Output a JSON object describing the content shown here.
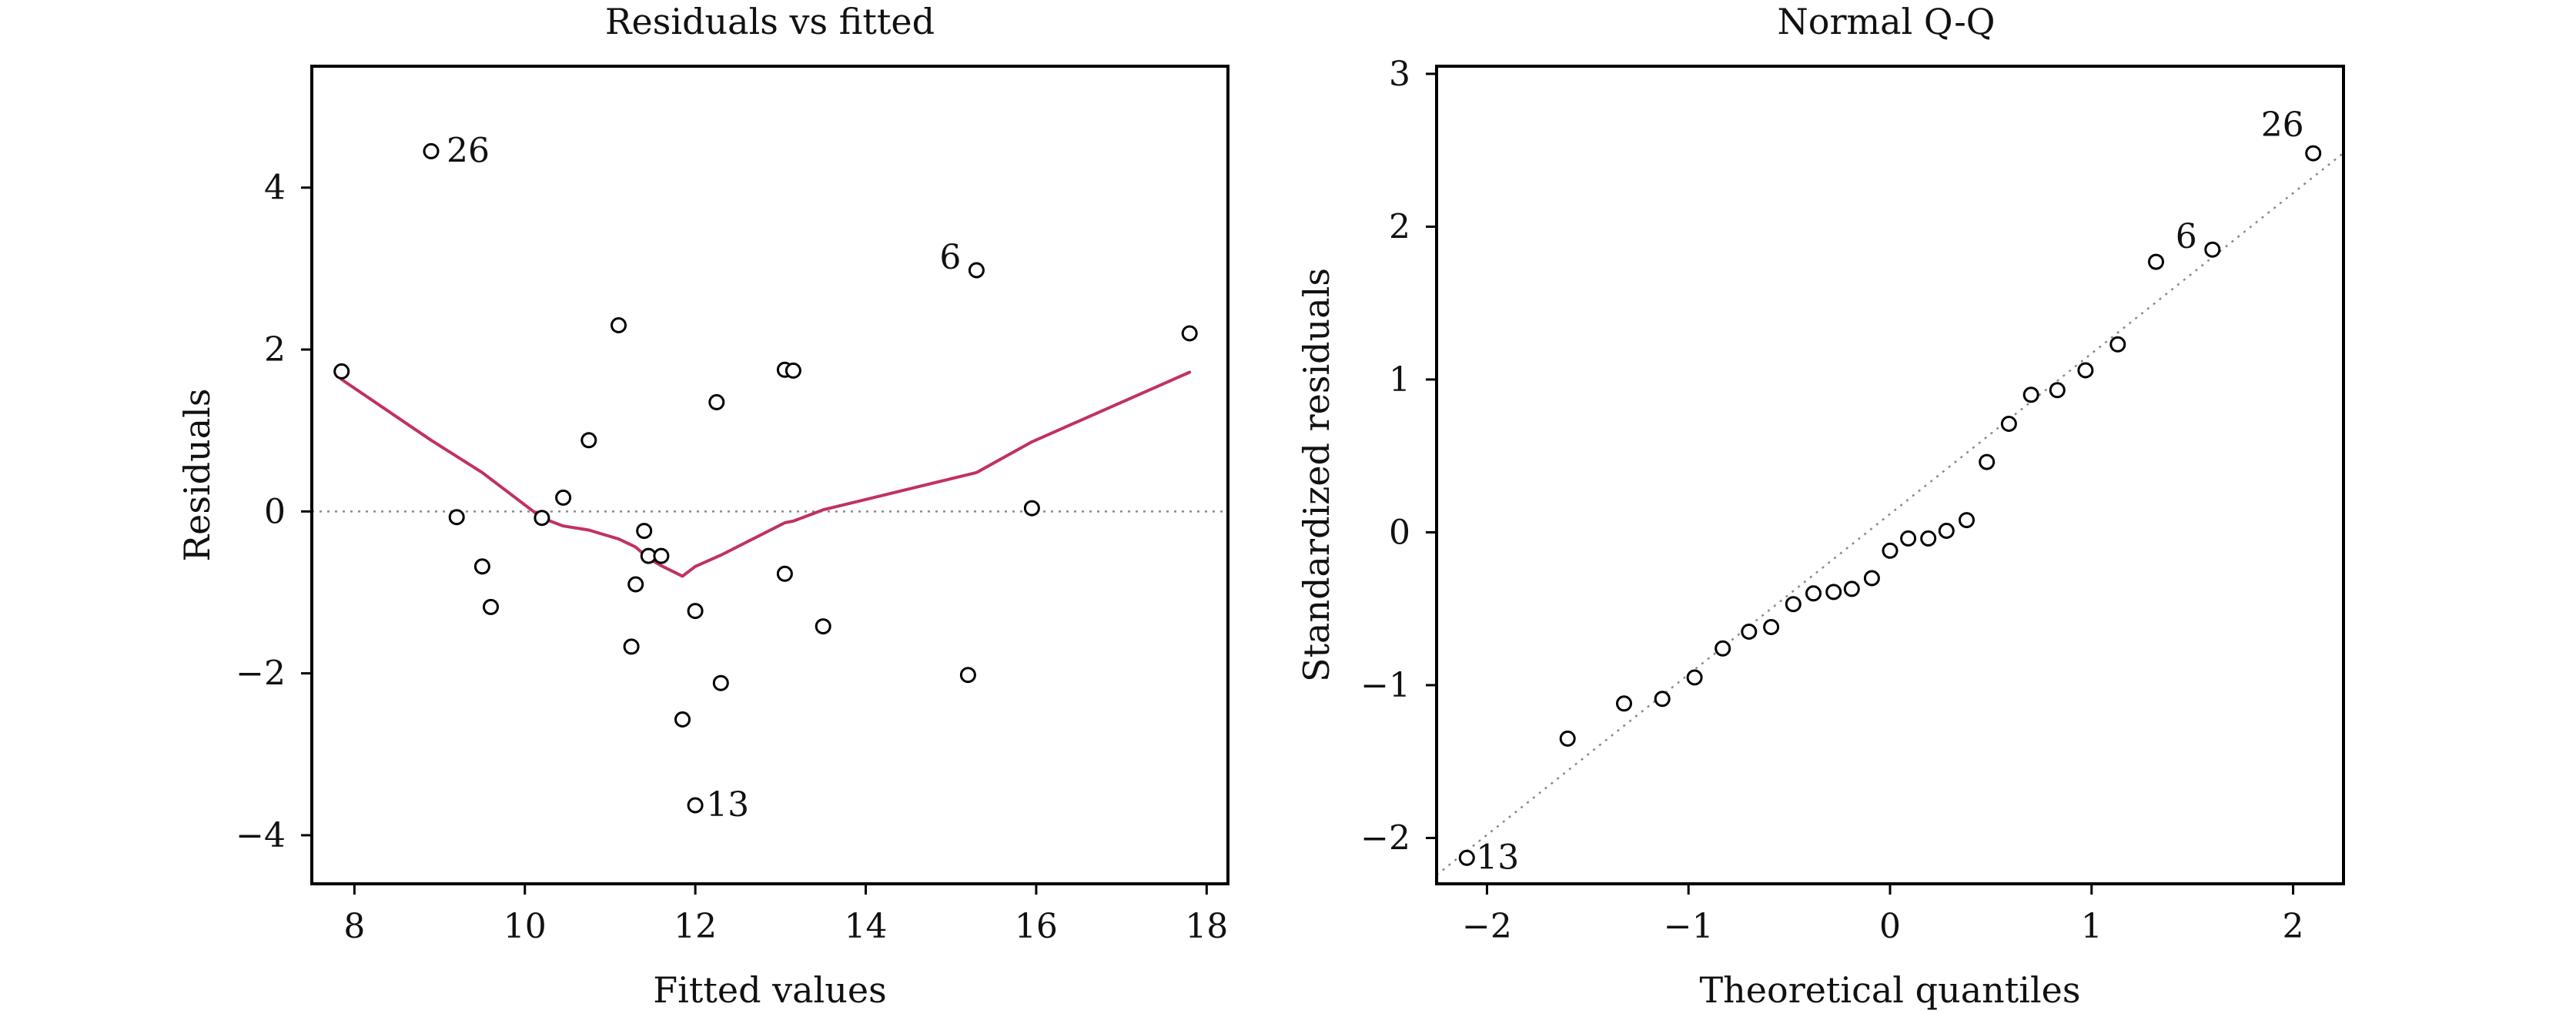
{
  "colors": {
    "smoother": "#c0325f",
    "points": "#000000",
    "reference": "#8a8a8a"
  },
  "chart_data": [
    {
      "type": "scatter",
      "title": "Residuals vs fitted",
      "xlabel": "Fitted values",
      "ylabel": "Residuals",
      "xlim": [
        7.5,
        18.25
      ],
      "ylim": [
        -4.6,
        5.5
      ],
      "xticks": [
        8,
        10,
        12,
        14,
        16,
        18
      ],
      "yticks": [
        -4,
        -2,
        0,
        2,
        4
      ],
      "grid": false,
      "reference_line": {
        "kind": "horizontal",
        "y": 0,
        "style": "dotted"
      },
      "points": [
        {
          "x": 7.85,
          "y": 1.73
        },
        {
          "x": 8.9,
          "y": 4.45,
          "label": "26"
        },
        {
          "x": 9.2,
          "y": -0.07
        },
        {
          "x": 9.5,
          "y": -0.68
        },
        {
          "x": 9.6,
          "y": -1.18
        },
        {
          "x": 10.2,
          "y": -0.08
        },
        {
          "x": 10.45,
          "y": 0.17
        },
        {
          "x": 10.75,
          "y": 0.88
        },
        {
          "x": 11.1,
          "y": 2.3
        },
        {
          "x": 11.25,
          "y": -1.67
        },
        {
          "x": 11.3,
          "y": -0.9
        },
        {
          "x": 11.4,
          "y": -0.24
        },
        {
          "x": 11.45,
          "y": -0.55
        },
        {
          "x": 11.6,
          "y": -0.55
        },
        {
          "x": 11.85,
          "y": -2.57
        },
        {
          "x": 12.0,
          "y": -1.23
        },
        {
          "x": 12.0,
          "y": -3.63,
          "label": "13"
        },
        {
          "x": 12.25,
          "y": 1.35
        },
        {
          "x": 12.3,
          "y": -2.12
        },
        {
          "x": 13.05,
          "y": 1.75
        },
        {
          "x": 13.05,
          "y": -0.77
        },
        {
          "x": 13.15,
          "y": 1.74
        },
        {
          "x": 13.5,
          "y": -1.42
        },
        {
          "x": 15.2,
          "y": -2.02
        },
        {
          "x": 15.3,
          "y": 2.98,
          "label": "6"
        },
        {
          "x": 15.95,
          "y": 0.04
        },
        {
          "x": 17.8,
          "y": 2.2
        }
      ],
      "smoother": [
        {
          "x": 7.85,
          "y": 1.63
        },
        {
          "x": 8.9,
          "y": 0.88
        },
        {
          "x": 9.5,
          "y": 0.48
        },
        {
          "x": 10.2,
          "y": -0.08
        },
        {
          "x": 10.45,
          "y": -0.18
        },
        {
          "x": 10.75,
          "y": -0.23
        },
        {
          "x": 11.1,
          "y": -0.34
        },
        {
          "x": 11.3,
          "y": -0.44
        },
        {
          "x": 11.45,
          "y": -0.58
        },
        {
          "x": 11.6,
          "y": -0.67
        },
        {
          "x": 11.85,
          "y": -0.8
        },
        {
          "x": 12.0,
          "y": -0.68
        },
        {
          "x": 12.3,
          "y": -0.54
        },
        {
          "x": 13.05,
          "y": -0.14
        },
        {
          "x": 13.15,
          "y": -0.12
        },
        {
          "x": 13.5,
          "y": 0.02
        },
        {
          "x": 15.3,
          "y": 0.48
        },
        {
          "x": 15.95,
          "y": 0.86
        },
        {
          "x": 17.8,
          "y": 1.72
        }
      ]
    },
    {
      "type": "scatter",
      "title": "Normal Q-Q",
      "xlabel": "Theoretical quantiles",
      "ylabel": "Standardized residuals",
      "xlim": [
        -2.25,
        2.25
      ],
      "ylim": [
        -2.3,
        3.05
      ],
      "xticks": [
        -2,
        -1,
        0,
        1,
        2
      ],
      "yticks": [
        -2,
        -1,
        0,
        1,
        2,
        3
      ],
      "grid": false,
      "reference_line": {
        "kind": "diagonal",
        "slope": 1.05,
        "intercept": 0.12,
        "style": "dotted"
      },
      "points": [
        {
          "x": -2.1,
          "y": -2.13,
          "label": "13"
        },
        {
          "x": -1.6,
          "y": -1.35
        },
        {
          "x": -1.32,
          "y": -1.12
        },
        {
          "x": -1.13,
          "y": -1.09
        },
        {
          "x": -0.97,
          "y": -0.95
        },
        {
          "x": -0.83,
          "y": -0.76
        },
        {
          "x": -0.7,
          "y": -0.65
        },
        {
          "x": -0.59,
          "y": -0.62
        },
        {
          "x": -0.48,
          "y": -0.47
        },
        {
          "x": -0.38,
          "y": -0.4
        },
        {
          "x": -0.28,
          "y": -0.39
        },
        {
          "x": -0.19,
          "y": -0.37
        },
        {
          "x": -0.09,
          "y": -0.3
        },
        {
          "x": 0.0,
          "y": -0.12
        },
        {
          "x": 0.09,
          "y": -0.04
        },
        {
          "x": 0.19,
          "y": -0.04
        },
        {
          "x": 0.28,
          "y": 0.01
        },
        {
          "x": 0.38,
          "y": 0.08
        },
        {
          "x": 0.48,
          "y": 0.46
        },
        {
          "x": 0.59,
          "y": 0.71
        },
        {
          "x": 0.7,
          "y": 0.9
        },
        {
          "x": 0.83,
          "y": 0.93
        },
        {
          "x": 0.97,
          "y": 1.06
        },
        {
          "x": 1.13,
          "y": 1.23
        },
        {
          "x": 1.32,
          "y": 1.77
        },
        {
          "x": 1.6,
          "y": 1.85,
          "label": "6"
        },
        {
          "x": 2.1,
          "y": 2.48,
          "label": "26"
        }
      ]
    }
  ]
}
